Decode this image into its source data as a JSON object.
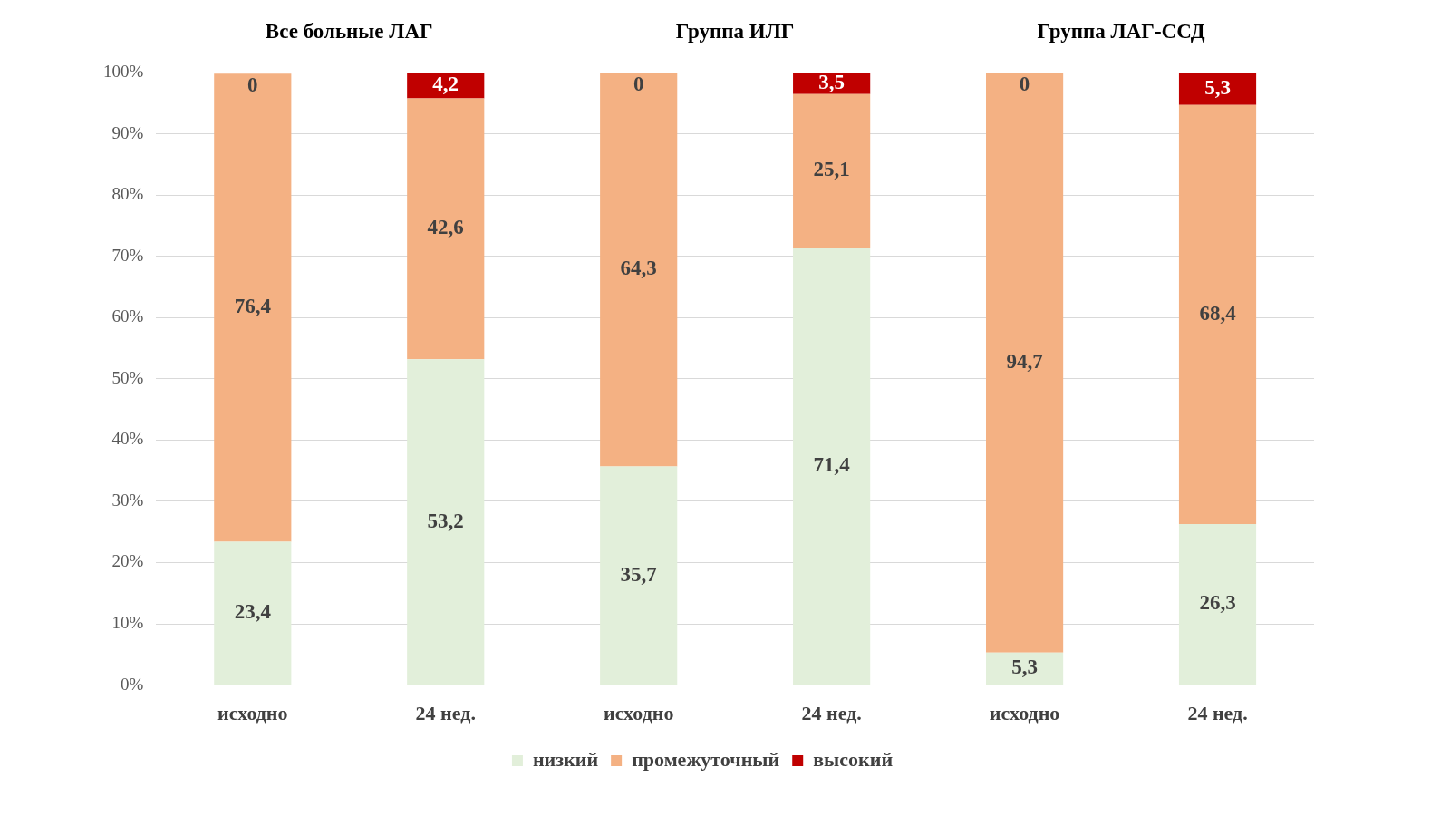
{
  "chart_data": {
    "type": "bar",
    "stacked": true,
    "categories": [
      "исходно",
      "24 нед.",
      "исходно",
      "24 нед.",
      "исходно",
      "24 нед."
    ],
    "series": [
      {
        "name": "низкий",
        "color": "#e2efda",
        "values": [
          23.4,
          53.2,
          35.7,
          71.4,
          5.3,
          26.3
        ],
        "value_labels": [
          "23,4",
          "53,2",
          "35,7",
          "71,4",
          "5,3",
          "26,3"
        ]
      },
      {
        "name": "промежуточный",
        "color": "#f4b183",
        "values": [
          76.4,
          42.6,
          64.3,
          25.1,
          94.7,
          68.4
        ],
        "value_labels": [
          "76,4",
          "42,6",
          "64,3",
          "25,1",
          "94,7",
          "68,4"
        ]
      },
      {
        "name": "высокий",
        "color": "#c00000",
        "values": [
          0,
          4.2,
          0,
          3.5,
          0,
          5.3
        ],
        "value_labels": [
          "0",
          "4,2",
          "0",
          "3,5",
          "0",
          "5,3"
        ]
      }
    ],
    "annotations": [
      "Все больные ЛАГ",
      "Группа ИЛГ",
      "Группа ЛАГ-ССД"
    ],
    "ylim": [
      0,
      100
    ],
    "yticks": [
      {
        "value": 0,
        "label": "0%"
      },
      {
        "value": 10,
        "label": "10%"
      },
      {
        "value": 20,
        "label": "20%"
      },
      {
        "value": 30,
        "label": "30%"
      },
      {
        "value": 40,
        "label": "40%"
      },
      {
        "value": 50,
        "label": "50%"
      },
      {
        "value": 60,
        "label": "60%"
      },
      {
        "value": 70,
        "label": "70%"
      },
      {
        "value": 80,
        "label": "80%"
      },
      {
        "value": 90,
        "label": "90%"
      },
      {
        "value": 100,
        "label": "100%"
      }
    ],
    "grid": "y",
    "legend": "bottom"
  }
}
